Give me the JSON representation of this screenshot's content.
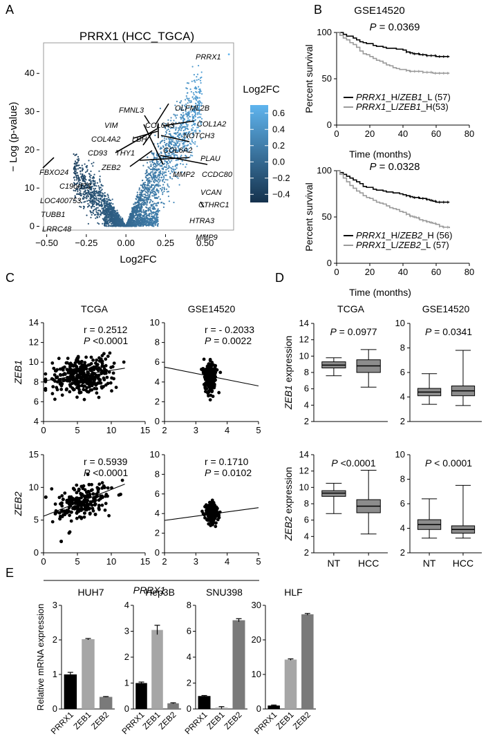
{
  "panel_letters": [
    "A",
    "B",
    "C",
    "D",
    "E"
  ],
  "common": {
    "p_label": "P",
    "prrx1_label": "PRRX1",
    "nt_label": "NT",
    "hcc_label": "HCC"
  },
  "colors": {
    "volcano_low": "#15324d",
    "volcano_high": "#5fb4ee",
    "km_high": "#000000",
    "km_low": "#9a9a9a",
    "box_fill": "#8c8c8c",
    "bar_prrx1": "#000000",
    "bar_zeb1": "#a6a6a6",
    "bar_zeb2": "#7a7a7a"
  },
  "chart_data": [
    {
      "id": "A",
      "type": "scatter",
      "title": "PRRX1 (HCC_TGCA)",
      "xlabel": "Log2FC",
      "ylabel": "− Log (p-value)",
      "xlim": [
        -0.52,
        0.68
      ],
      "ylim": [
        -1,
        48
      ],
      "xticks": [
        "−0.50",
        "−0.25",
        "0.00",
        "0.25",
        "0.50"
      ],
      "xtick_values": [
        -0.5,
        -0.25,
        0,
        0.25,
        0.5
      ],
      "yticks": [
        "0",
        "10",
        "20",
        "30",
        "40"
      ],
      "ytick_values": [
        0,
        10,
        20,
        30,
        40
      ],
      "colorbar": {
        "title": "Log2FC",
        "ticks": [
          "0.6",
          "0.4",
          "0.2",
          "0.0",
          "−0.2",
          "−0.4"
        ],
        "tick_values": [
          0.6,
          0.4,
          0.2,
          0.0,
          -0.2,
          -0.4
        ],
        "range": [
          -0.5,
          0.7
        ]
      },
      "labeled_genes": [
        {
          "gene": "PRRX1",
          "x": 0.65,
          "y": 45
        },
        {
          "gene": "FMNL3",
          "x": 0.14,
          "y": 28
        },
        {
          "gene": "OLFML2B",
          "x": 0.24,
          "y": 29
        },
        {
          "gene": "VIM",
          "x": 0.16,
          "y": 28
        },
        {
          "gene": "COL6A3",
          "x": 0.22,
          "y": 29
        },
        {
          "gene": "COL1A2",
          "x": 0.23,
          "y": 29
        },
        {
          "gene": "COL4A2",
          "x": 0.2,
          "y": 26
        },
        {
          "gene": "LBH",
          "x": 0.21,
          "y": 27
        },
        {
          "gene": "NOTCH3",
          "x": 0.22,
          "y": 28
        },
        {
          "gene": "CD93",
          "x": 0.15,
          "y": 26
        },
        {
          "gene": "THY1",
          "x": 0.2,
          "y": 26
        },
        {
          "gene": "COL6A2",
          "x": 0.23,
          "y": 27
        },
        {
          "gene": "PLAU",
          "x": 0.22,
          "y": 27
        },
        {
          "gene": "ZEB2",
          "x": 0.18,
          "y": 21
        },
        {
          "gene": "MMP2",
          "x": 0.4,
          "y": 21
        },
        {
          "gene": "CCDC80",
          "x": 0.45,
          "y": 22
        },
        {
          "gene": "FBXO24",
          "x": -0.45,
          "y": 16
        },
        {
          "gene": "C19orf73",
          "x": -0.25,
          "y": 16
        },
        {
          "gene": "VCAN",
          "x": 0.43,
          "y": 19
        },
        {
          "gene": "LOC400753",
          "x": -0.24,
          "y": 14
        },
        {
          "gene": "CTHRC1",
          "x": 0.42,
          "y": 17
        },
        {
          "gene": "TUBB1",
          "x": -0.3,
          "y": 11
        },
        {
          "gene": "HTRA3",
          "x": 0.42,
          "y": 13
        },
        {
          "gene": "LRRC48",
          "x": -0.25,
          "y": 9
        },
        {
          "gene": "MMP9",
          "x": 0.41,
          "y": 9
        }
      ]
    },
    {
      "id": "B1",
      "type": "line",
      "title": "GSE14520",
      "annotation": "= 0.0369",
      "xlabel": "Time (months)",
      "ylabel": "Percent survival",
      "xlim": [
        0,
        80
      ],
      "ylim": [
        0,
        100
      ],
      "xticks": [
        "0",
        "20",
        "40",
        "60",
        "80"
      ],
      "xtick_values": [
        0,
        20,
        40,
        60,
        80
      ],
      "yticks": [
        "0",
        "50",
        "100"
      ],
      "ytick_values": [
        0,
        50,
        100
      ],
      "series": [
        {
          "name": "PRRX1_H/ZEB1_L (57)",
          "legend_gene": "PRRX1",
          "legend_mid": "_H/",
          "legend_gene2": "ZEB1",
          "legend_tail": "_L (57)",
          "color": "#000000",
          "x": [
            0,
            2,
            4,
            6,
            8,
            10,
            12,
            14,
            16,
            18,
            20,
            22,
            24,
            26,
            28,
            30,
            32,
            34,
            36,
            38,
            40,
            42,
            44,
            46,
            48,
            50,
            52,
            54,
            56,
            58,
            60,
            62,
            64,
            66,
            68
          ],
          "y": [
            100,
            100,
            98,
            96,
            96,
            94,
            92,
            90,
            89,
            88,
            88,
            86,
            85,
            85,
            84,
            83,
            83,
            83,
            82,
            82,
            81,
            79,
            78,
            77,
            77,
            76,
            76,
            75,
            75,
            75,
            74,
            74,
            74,
            74,
            74
          ]
        },
        {
          "name": "PRRX1_L/ZEB1_H(53)",
          "legend_gene": "PRRX1",
          "legend_mid": "_L/",
          "legend_gene2": "ZEB1",
          "legend_tail": "_H(53)",
          "color": "#9a9a9a",
          "x": [
            0,
            2,
            4,
            6,
            8,
            10,
            12,
            14,
            16,
            18,
            20,
            22,
            24,
            26,
            28,
            30,
            32,
            34,
            36,
            38,
            40,
            42,
            44,
            46,
            48,
            50,
            52,
            54,
            56,
            58,
            60,
            62,
            64,
            66,
            68
          ],
          "y": [
            100,
            97,
            94,
            92,
            89,
            87,
            84,
            80,
            77,
            76,
            74,
            72,
            70,
            69,
            67,
            65,
            64,
            62,
            61,
            60,
            60,
            59,
            58,
            58,
            58,
            58,
            57,
            57,
            57,
            56,
            56,
            56,
            56,
            56,
            56
          ]
        }
      ]
    },
    {
      "id": "B2",
      "type": "line",
      "title": "",
      "annotation": "= 0.0328",
      "xlabel": "Time (months)",
      "ylabel": "Percent survival",
      "xlim": [
        0,
        80
      ],
      "ylim": [
        0,
        100
      ],
      "xticks": [
        "0",
        "20",
        "40",
        "60",
        "80"
      ],
      "xtick_values": [
        0,
        20,
        40,
        60,
        80
      ],
      "yticks": [
        "0",
        "50",
        "100"
      ],
      "ytick_values": [
        0,
        50,
        100
      ],
      "series": [
        {
          "name": "PRRX1_H/ZEB2_H (56)",
          "legend_gene": "PRRX1",
          "legend_mid": "_H/",
          "legend_gene2": "ZEB2",
          "legend_tail": "_H (56)",
          "color": "#000000",
          "x": [
            0,
            2,
            4,
            6,
            8,
            10,
            12,
            14,
            16,
            18,
            20,
            22,
            24,
            26,
            28,
            30,
            32,
            34,
            36,
            38,
            40,
            42,
            44,
            46,
            48,
            50,
            52,
            54,
            56,
            58,
            60,
            62,
            64,
            66,
            68
          ],
          "y": [
            100,
            98,
            96,
            94,
            92,
            90,
            88,
            86,
            83,
            82,
            82,
            80,
            79,
            79,
            78,
            77,
            77,
            76,
            76,
            75,
            74,
            73,
            72,
            71,
            71,
            70,
            70,
            69,
            68,
            67,
            66,
            66,
            66,
            66,
            66
          ]
        },
        {
          "name": "PRRX1_L/ZEB2_L (57)",
          "legend_gene": "PRRX1",
          "legend_mid": "_L/",
          "legend_gene2": "ZEB2",
          "legend_tail": "_L (57)",
          "color": "#9a9a9a",
          "x": [
            0,
            2,
            4,
            6,
            8,
            10,
            12,
            14,
            16,
            18,
            20,
            22,
            24,
            26,
            28,
            30,
            32,
            34,
            36,
            38,
            40,
            42,
            44,
            46,
            48,
            50,
            52,
            54,
            56,
            58,
            60,
            62,
            64,
            66,
            68
          ],
          "y": [
            100,
            96,
            92,
            88,
            84,
            81,
            78,
            76,
            73,
            71,
            70,
            68,
            66,
            65,
            64,
            62,
            60,
            59,
            58,
            56,
            55,
            53,
            51,
            50,
            49,
            47,
            46,
            45,
            44,
            43,
            42,
            40,
            39,
            39,
            38
          ]
        }
      ]
    },
    {
      "id": "C1",
      "type": "scatter",
      "title": "TCGA",
      "r_label": "r = 0.2512",
      "p_text": "<0.0001",
      "ylabel": "ZEB1",
      "xlim": [
        0,
        15
      ],
      "ylim": [
        4,
        14
      ],
      "xticks": [
        "0",
        "5",
        "10",
        "15"
      ],
      "xtick_values": [
        0,
        5,
        10,
        15
      ],
      "yticks": [
        "4",
        "6",
        "8",
        "10",
        "12",
        "14"
      ],
      "ytick_values": [
        4,
        6,
        8,
        10,
        12,
        14
      ],
      "fit": {
        "x": [
          0,
          12
        ],
        "y": [
          8.1,
          9.4
        ]
      },
      "cloud": {
        "cx": 5.8,
        "cy": 8.6,
        "sx": 2.2,
        "sy": 0.95,
        "n": 360
      }
    },
    {
      "id": "C2",
      "type": "scatter",
      "title": "GSE14520",
      "r_label": "r = - 0.2033",
      "p_text": "= 0.0022",
      "ylabel": "",
      "xlim": [
        2,
        5
      ],
      "ylim": [
        0,
        10
      ],
      "xticks": [
        "2",
        "3",
        "4",
        "5"
      ],
      "xtick_values": [
        2,
        3,
        4,
        5
      ],
      "yticks": [
        "0",
        "2",
        "4",
        "6",
        "8",
        "10"
      ],
      "ytick_values": [
        0,
        2,
        4,
        6,
        8,
        10
      ],
      "fit": {
        "x": [
          2,
          5
        ],
        "y": [
          5.5,
          3.6
        ]
      },
      "cloud": {
        "cx": 3.45,
        "cy": 4.4,
        "sx": 0.1,
        "sy": 0.75,
        "n": 220
      }
    },
    {
      "id": "C3",
      "type": "scatter",
      "title": "",
      "r_label": "r = 0.5939",
      "p_text": "<0.0001",
      "ylabel": "ZEB2",
      "xlim": [
        0,
        15
      ],
      "ylim": [
        0,
        15
      ],
      "xticks": [
        "0",
        "5",
        "10",
        "15"
      ],
      "xtick_values": [
        0,
        5,
        10,
        15
      ],
      "yticks": [
        "0",
        "5",
        "10",
        "15"
      ],
      "ytick_values": [
        0,
        5,
        10,
        15
      ],
      "fit": {
        "x": [
          0,
          12
        ],
        "y": [
          5.6,
          10.5
        ]
      },
      "cloud": {
        "cx": 5.5,
        "cy": 7.6,
        "sx": 2.2,
        "sy": 1.3,
        "n": 360
      }
    },
    {
      "id": "C4",
      "type": "scatter",
      "title": "",
      "r_label": "r = 0.1710",
      "p_text": "= 0.0102",
      "ylabel": "",
      "xlim": [
        2,
        5
      ],
      "ylim": [
        0,
        10
      ],
      "xticks": [
        "2",
        "3",
        "4",
        "5"
      ],
      "xtick_values": [
        2,
        3,
        4,
        5
      ],
      "yticks": [
        "0",
        "2",
        "4",
        "6",
        "8",
        "10"
      ],
      "ytick_values": [
        0,
        2,
        4,
        6,
        8,
        10
      ],
      "fit": {
        "x": [
          2,
          5
        ],
        "y": [
          3.3,
          4.6
        ]
      },
      "cloud": {
        "cx": 3.5,
        "cy": 4.1,
        "sx": 0.1,
        "sy": 0.45,
        "n": 220
      }
    },
    {
      "id": "D1",
      "type": "box",
      "title": "TCGA",
      "p_text": "= 0.0977",
      "ylabel_gene": "ZEB1",
      "ylabel_rest": " expression",
      "ylim": [
        2,
        14
      ],
      "yticks": [
        "2",
        "4",
        "6",
        "8",
        "10",
        "12",
        "14"
      ],
      "ytick_values": [
        2,
        4,
        6,
        8,
        10,
        12,
        14
      ],
      "boxes": [
        {
          "group": "NT",
          "min": 7.6,
          "q1": 8.55,
          "median": 8.9,
          "q3": 9.3,
          "max": 9.8
        },
        {
          "group": "HCC",
          "min": 6.2,
          "q1": 8.0,
          "median": 8.8,
          "q3": 9.55,
          "max": 10.8
        }
      ]
    },
    {
      "id": "D2",
      "type": "box",
      "title": "GSE14520",
      "p_text": "= 0.0341",
      "ylim": [
        2,
        10
      ],
      "yticks": [
        "2",
        "4",
        "6",
        "8",
        "10"
      ],
      "ytick_values": [
        2,
        4,
        6,
        8,
        10
      ],
      "boxes": [
        {
          "group": "NT",
          "min": 3.4,
          "q1": 4.1,
          "median": 4.4,
          "q3": 4.7,
          "max": 5.9
        },
        {
          "group": "HCC",
          "min": 3.3,
          "q1": 4.1,
          "median": 4.5,
          "q3": 4.9,
          "max": 7.8
        }
      ]
    },
    {
      "id": "D3",
      "type": "box",
      "title": "",
      "p_text": "<0.0001",
      "ylabel_gene": "ZEB2",
      "ylabel_rest": " expression",
      "ylim": [
        2,
        14
      ],
      "yticks": [
        "2",
        "4",
        "6",
        "8",
        "10",
        "12",
        "14"
      ],
      "ytick_values": [
        2,
        4,
        6,
        8,
        10,
        12,
        14
      ],
      "boxes": [
        {
          "group": "NT",
          "min": 6.8,
          "q1": 8.9,
          "median": 9.3,
          "q3": 9.6,
          "max": 10.5
        },
        {
          "group": "HCC",
          "min": 4.3,
          "q1": 6.9,
          "median": 7.7,
          "q3": 8.5,
          "max": 12.1
        }
      ]
    },
    {
      "id": "D4",
      "type": "box",
      "title": "",
      "p_text": "< 0.0001",
      "ylim": [
        2,
        10
      ],
      "yticks": [
        "2",
        "4",
        "6",
        "8",
        "10"
      ],
      "ytick_values": [
        2,
        4,
        6,
        8,
        10
      ],
      "boxes": [
        {
          "group": "NT",
          "min": 3.2,
          "q1": 3.9,
          "median": 4.3,
          "q3": 4.7,
          "max": 6.4
        },
        {
          "group": "HCC",
          "min": 3.2,
          "q1": 3.6,
          "median": 3.9,
          "q3": 4.2,
          "max": 7.5
        }
      ]
    },
    {
      "id": "E1",
      "type": "bar",
      "title": "HUH7",
      "ylabel": "Relative mRNA expression",
      "categories": [
        "PRRX1",
        "ZEB1",
        "ZEB2"
      ],
      "values": [
        1.0,
        2.02,
        0.35
      ],
      "errors": [
        0.06,
        0.02,
        0.01
      ],
      "ylim": [
        0,
        3
      ],
      "yticks": [
        "0",
        "1",
        "2",
        "3"
      ],
      "ytick_values": [
        0,
        1,
        2,
        3
      ]
    },
    {
      "id": "E2",
      "type": "bar",
      "title": "Hep3B",
      "ylabel": "",
      "categories": [
        "PRRX1",
        "ZEB1",
        "ZEB2"
      ],
      "values": [
        1.0,
        3.05,
        0.22
      ],
      "errors": [
        0.04,
        0.18,
        0.02
      ],
      "ylim": [
        0,
        4
      ],
      "yticks": [
        "0",
        "1",
        "2",
        "3",
        "4"
      ],
      "ytick_values": [
        0,
        1,
        2,
        3,
        4
      ]
    },
    {
      "id": "E3",
      "type": "bar",
      "title": "SNU398",
      "ylabel": "",
      "categories": [
        "PRRX1",
        "ZEB1",
        "ZEB2"
      ],
      "values": [
        1.0,
        0.1,
        6.85
      ],
      "errors": [
        0.04,
        0.08,
        0.12
      ],
      "ylim": [
        0,
        8
      ],
      "yticks": [
        "0",
        "2",
        "4",
        "6",
        "8"
      ],
      "ytick_values": [
        0,
        2,
        4,
        6,
        8
      ]
    },
    {
      "id": "E4",
      "type": "bar",
      "title": "HLF",
      "ylabel": "",
      "categories": [
        "PRRX1",
        "ZEB1",
        "ZEB2"
      ],
      "values": [
        1.0,
        14.3,
        27.4
      ],
      "errors": [
        0.15,
        0.2,
        0.25
      ],
      "ylim": [
        0,
        30
      ],
      "yticks": [
        "0",
        "10",
        "20",
        "30"
      ],
      "ytick_values": [
        0,
        10,
        20,
        30
      ]
    }
  ]
}
